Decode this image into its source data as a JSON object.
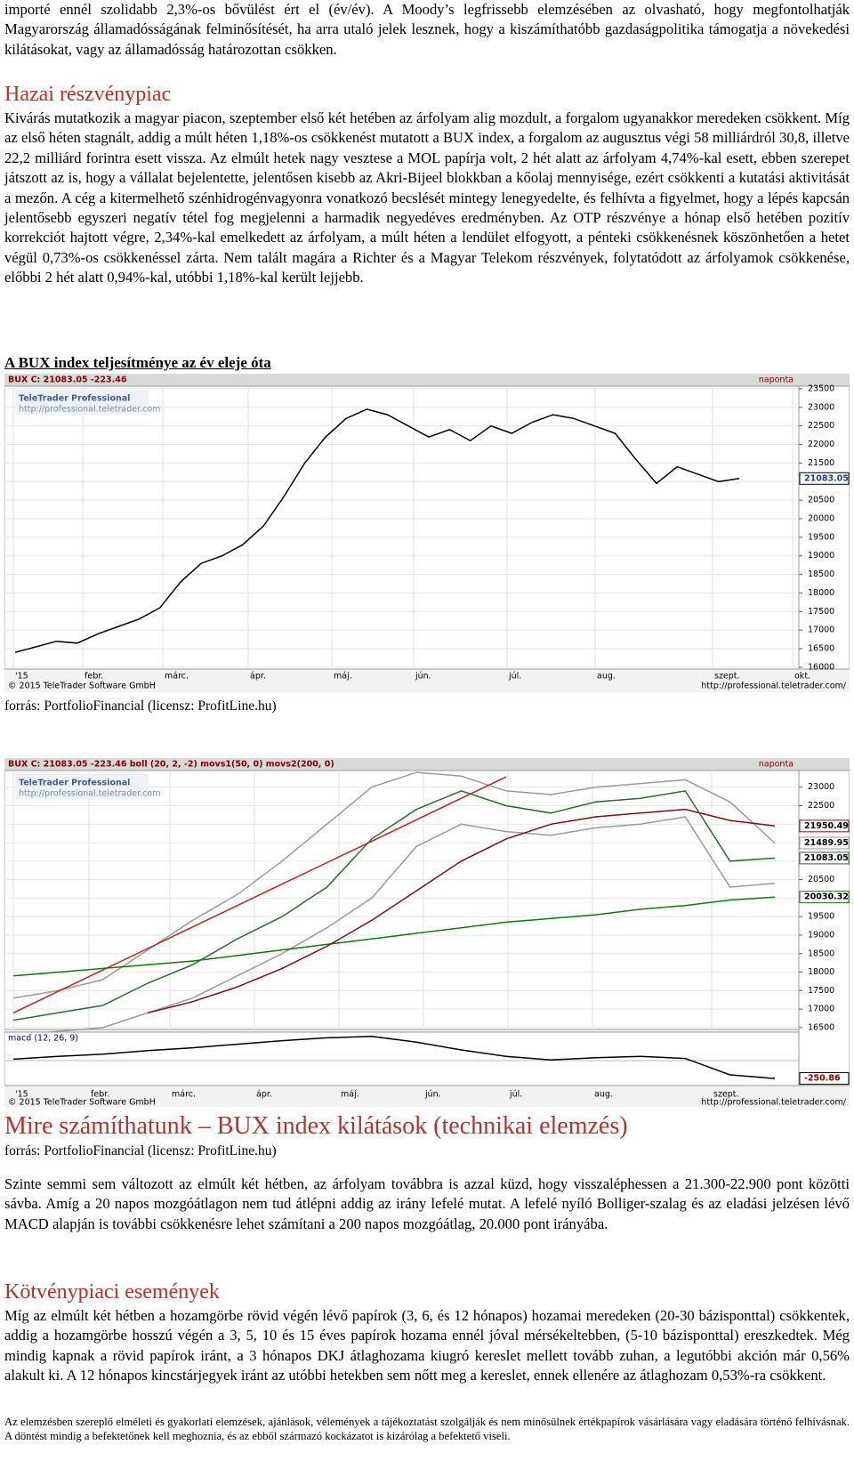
{
  "document": {
    "paragraph_1": "importé ennél szolidabb 2,3%-os bővülést ért el (év/év). A Moody’s legfrissebb elemzésében az olvasható, hogy megfontolhatják Magyarország államadósságának felminősítését, ha arra utaló jelek lesznek, hogy a kiszámíthatóbb gazdaságpolitika támogatja a növekedési kilátásokat, vagy az államadósság határozottan csökken.",
    "heading_1": "Hazai részvénypiac",
    "paragraph_2": "Kivárás mutatkozik a magyar piacon, szeptember első két hetében az árfolyam alig mozdult, a forgalom ugyanakkor meredeken csökkent. Míg az első héten stagnált, addig a múlt héten 1,18%-os csökkenést mutatott a BUX index, a forgalom az augusztus végi 58 milliárdról 30,8, illetve 22,2 milliárd forintra esett vissza. Az elmúlt hetek nagy vesztese a MOL papírja volt, 2 hét alatt az árfolyam 4,74%-kal esett, ebben szerepet játszott az is, hogy a vállalat bejelentette, jelentősen kisebb az Akri-Bijeel blokkban a kőolaj mennyisége, ezért csökkenti a kutatási aktivitását a mezőn. A cég a kitermelhető szénhidrogénvagyonra vonatkozó becslését mintegy lenegyedelte, és felhívta a figyelmet, hogy a lépés kapcsán jelentősebb egyszeri negatív tétel fog megjelenni a harmadik negyedéves eredményben. Az OTP részvénye a hónap első hetében pozitív korrekciót hajtott végre, 2,34%-kal emelkedett az árfolyam, a múlt héten a lendület elfogyott, a pénteki csökkenésnek köszönhetően a hetet végül 0,73%-os csökkenéssel zárta. Nem talált magára a Richter és a Magyar Telekom részvények, folytatódott az árfolyamok csökkenése, előbbi 2 hét alatt 0,94%-kal, utóbbi 1,18%-kal került lejjebb.",
    "heading_2": "Mire számíthatunk – BUX index kilátások (technikai elemzés)",
    "paragraph_3": "Szinte semmi sem változott az elmúlt két hétben, az árfolyam továbbra is azzal küzd, hogy visszaléphessen a 21.300-22.900 pont közötti sávba. Amíg a 20 napos mozgóátlagon nem tud átlépni addig az irány lefelé mutat. A lefelé nyíló Bolliger-szalag és az eladási jelzésen lévő MACD alapján is további csökkenésre lehet számítani a 200 napos mozgóátlag, 20.000 pont irányába.",
    "heading_3": "Kötvénypiaci események",
    "paragraph_4": "Míg az elmúlt két hétben a hozamgörbe rövid végén lévő papírok (3, 6, és 12 hónapos) hozamai meredeken (20-30 bázisponttal) csökkentek, addig a hozamgörbe hosszú végén a 3, 5, 10 és 15 éves papírok hozama ennél jóval mérsékeltebben, (5-10 bázisponttal) ereszkedtek. Még mindig kapnak a rövid papírok iránt, a 3 hónapos DKJ átlaghozama kiugró kereslet mellett tovább zuhan, a legutóbbi akción már 0,56% alakult ki. A 12 hónapos kincstárjegyek iránt az utóbbi hetekben sem nőtt meg a kereslet, ennek ellenére az átlaghozam 0,53%-ra csökkent.",
    "footnote": "Az elemzésben szereplő elméleti és gyakorlati elemzések, ajánlások, vélemények a tájékoztatást szolgálják és nem minősülnek értékpapírok vásárlására vagy eladására történő felhívásnak. A döntést mindig a befektetőnek kell meghoznia, és az ebből származó kockázatot is kizárólag a befektető viseli."
  },
  "chart_data": [
    {
      "type": "line",
      "title": "A BUX index teljesítménye az év eleje óta",
      "header": "BUX C: 21083.05 -223.46",
      "interval": "naponta",
      "logo": "TeleTrader Professional",
      "logo_url": "http://professional.teletrader.com",
      "copyright": "© 2015 TeleTrader Software GmbH",
      "url": "http://professional.teletrader.com/",
      "source": "forrás: PortfolioFinancial (licensz: ProfitLine.hu)",
      "months": [
        "'15",
        "febr.",
        "márc.",
        "ápr.",
        "máj.",
        "jún.",
        "júl.",
        "aug.",
        "szept.",
        "okt."
      ],
      "series": [
        {
          "color": "#000000",
          "tag": true,
          "values": [
            16400,
            16550,
            16700,
            16650,
            16900,
            17100,
            17300,
            17600,
            18300,
            18800,
            19000,
            19300,
            19800,
            20600,
            21500,
            22200,
            22700,
            22950,
            22800,
            22500,
            22200,
            22400,
            22100,
            22500,
            22300,
            22600,
            22800,
            22700,
            22500,
            22300,
            21600,
            20950,
            21400,
            21200,
            21000,
            21083.05
          ]
        }
      ],
      "ylim": [
        15950,
        23570
      ],
      "yticks": [
        16000,
        16500,
        17000,
        17500,
        18000,
        18500,
        19000,
        19500,
        20000,
        20500,
        21000,
        21500,
        22000,
        22500,
        23000,
        23500
      ],
      "grid": true
    },
    {
      "type": "line",
      "header": "BUX C: 21083.05 -223.46 boll (20, 2, -2) movs1(50, 0) movs2(200, 0)",
      "interval": "naponta",
      "logo": "TeleTrader Professional",
      "logo_url": "http://professional.teletrader.com",
      "copyright": "© 2015 TeleTrader Software GmbH",
      "url": "http://professional.teletrader.com/",
      "title": "Mire számíthatunk – BUX index kilátások (technikai elemzés)",
      "source": "forrás: PortfolioFinancial (licensz: ProfitLine.hu)",
      "months": [
        "'15",
        "febr.",
        "márc.",
        "ápr.",
        "máj.",
        "jún.",
        "júl.",
        "aug.",
        "szept."
      ],
      "series": [
        {
          "color": "#9a9a9a",
          "tag": true,
          "values": [
            17300,
            17500,
            17800,
            18600,
            19400,
            20100,
            21000,
            22000,
            23000,
            23400,
            23300,
            22900,
            22800,
            23000,
            23100,
            23200,
            22600,
            21489.95
          ]
        },
        {
          "color": "#9a9a9a",
          "tag": false,
          "values": [
            16300,
            16400,
            16500,
            16900,
            17300,
            17900,
            18500,
            19200,
            20000,
            21400,
            22000,
            21800,
            21700,
            21900,
            22000,
            22200,
            20300,
            20400
          ]
        },
        {
          "color": "#cc1f1f",
          "tag": false,
          "values": [
            16900,
            17480,
            18060,
            18640,
            19220,
            19800,
            20380,
            20960,
            21540,
            22120,
            22700,
            23280,
            null,
            null,
            null,
            null,
            null,
            null
          ]
        },
        {
          "color": "#0f7a0f",
          "tag": true,
          "values": [
            17900,
            18000,
            18100,
            18200,
            18300,
            18450,
            18600,
            18750,
            18900,
            19050,
            19200,
            19350,
            19450,
            19550,
            19700,
            19800,
            19950,
            20030.32
          ]
        },
        {
          "color": "#7a1010",
          "tag": true,
          "values": [
            null,
            null,
            null,
            16900,
            17200,
            17600,
            18100,
            18700,
            19400,
            20200,
            21000,
            21600,
            22000,
            22200,
            22300,
            22400,
            22100,
            21950.49
          ]
        },
        {
          "color": "#2f6b2f",
          "tag": true,
          "values": [
            16700,
            16900,
            17100,
            17700,
            18200,
            18900,
            19500,
            20300,
            21600,
            22400,
            22900,
            22500,
            22300,
            22600,
            22700,
            22900,
            21000,
            21083.05
          ]
        }
      ],
      "ylim": [
        16450,
        23450
      ],
      "yticks": [
        16500,
        17000,
        17500,
        18000,
        18500,
        19000,
        19500,
        20000,
        20500,
        21000,
        21500,
        22000,
        22500,
        23000
      ],
      "grid": true,
      "macd": {
        "label": "macd (12, 26, 9)",
        "color": "#000000",
        "ylim": [
          -350,
          400
        ],
        "values": [
          20,
          60,
          90,
          140,
          180,
          230,
          280,
          320,
          340,
          260,
          150,
          60,
          10,
          40,
          60,
          30,
          -200,
          -250.86
        ]
      }
    }
  ]
}
